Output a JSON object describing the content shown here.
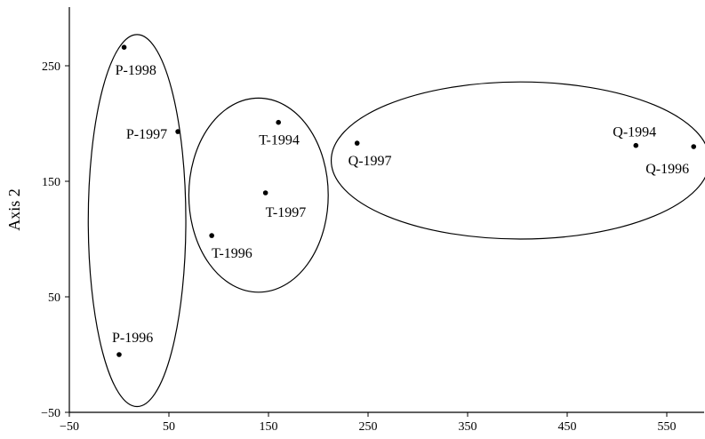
{
  "chart_data": {
    "type": "scatter",
    "title": "",
    "xlabel": "",
    "ylabel": "Axis 2",
    "xlim": [
      -50,
      590
    ],
    "ylim": [
      -50,
      300
    ],
    "x_ticks": [
      -50,
      50,
      150,
      250,
      350,
      450,
      550
    ],
    "y_ticks": [
      -50,
      50,
      150,
      250
    ],
    "grid": false,
    "legend": "none",
    "points": [
      {
        "label": "P-1998",
        "x": 5,
        "y": 266
      },
      {
        "label": "P-1997",
        "x": 59,
        "y": 193
      },
      {
        "label": "P-1996",
        "x": 0,
        "y": 0
      },
      {
        "label": "T-1994",
        "x": 160,
        "y": 201
      },
      {
        "label": "T-1997",
        "x": 147,
        "y": 140
      },
      {
        "label": "T-1996",
        "x": 93,
        "y": 103
      },
      {
        "label": "Q-1997",
        "x": 239,
        "y": 183
      },
      {
        "label": "Q-1994",
        "x": 519,
        "y": 181
      },
      {
        "label": "Q-1996",
        "x": 577,
        "y": 180
      }
    ],
    "clusters": [
      {
        "cx": 18,
        "cy": 116,
        "rx": 49,
        "ry": 161
      },
      {
        "cx": 140,
        "cy": 138,
        "rx": 70,
        "ry": 84
      },
      {
        "cx": 403,
        "cy": 168,
        "rx": 190,
        "ry": 68
      }
    ]
  }
}
